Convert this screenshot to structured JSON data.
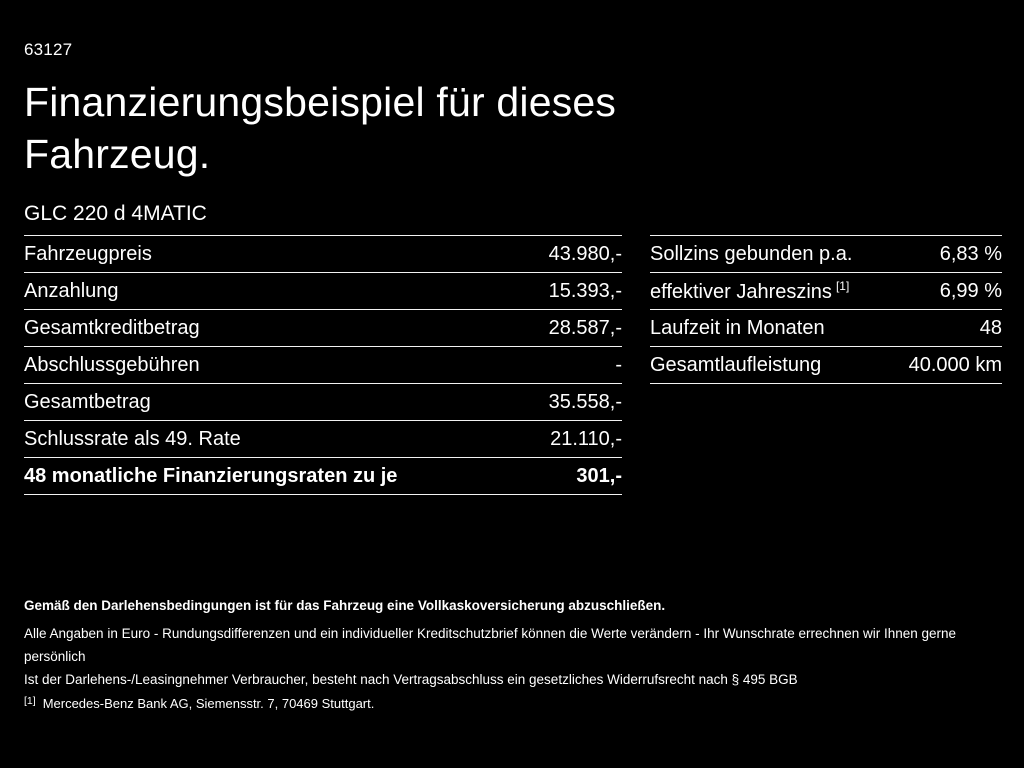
{
  "page": {
    "doc_id": "63127",
    "title": "Finanzierungsbeispiel für dieses Fahrzeug.",
    "vehicle": "GLC 220 d 4MATIC"
  },
  "colors": {
    "background": "#000000",
    "text": "#ffffff",
    "divider": "#f2f2f2"
  },
  "left_table": {
    "rows": [
      {
        "label": "Fahrzeugpreis",
        "value": "43.980,-"
      },
      {
        "label": "Anzahlung",
        "value": "15.393,-"
      },
      {
        "label": "Gesamtkreditbetrag",
        "value": "28.587,-"
      },
      {
        "label": "Abschlussgebühren",
        "value": "-"
      },
      {
        "label": "Gesamtbetrag",
        "value": "35.558,-"
      },
      {
        "label": "Schlussrate als 49. Rate",
        "value": "21.110,-"
      },
      {
        "label": "48 monatliche Finanzierungsraten zu je",
        "value": "301,-"
      }
    ]
  },
  "right_table": {
    "rows": [
      {
        "label": "Sollzins gebunden p.a.",
        "sup": "",
        "value": "6,83 %"
      },
      {
        "label": "effektiver Jahreszins",
        "sup": "[1]",
        "value": "6,99 %"
      },
      {
        "label": "Laufzeit in Monaten",
        "sup": "",
        "value": "48"
      },
      {
        "label": "Gesamtlaufleistung",
        "sup": "",
        "value": "40.000 km"
      }
    ]
  },
  "footnotes": {
    "bold_note": "Gemäß den Darlehensbedingungen ist für das Fahrzeug eine Vollkaskoversicherung abzuschließen.",
    "note1": "Alle Angaben in Euro - Rundungsdifferenzen und ein individueller Kreditschutzbrief können die Werte verändern - Ihr Wunschrate errechnen wir Ihnen gerne persönlich",
    "note2": "Ist der Darlehens-/Leasingnehmer Verbraucher, besteht nach Vertragsabschluss ein gesetzliches Widerrufsrecht nach § 495 BGB",
    "ref_marker": "[1]",
    "ref_text": "Mercedes-Benz Bank AG, Siemensstr. 7, 70469 Stuttgart."
  }
}
